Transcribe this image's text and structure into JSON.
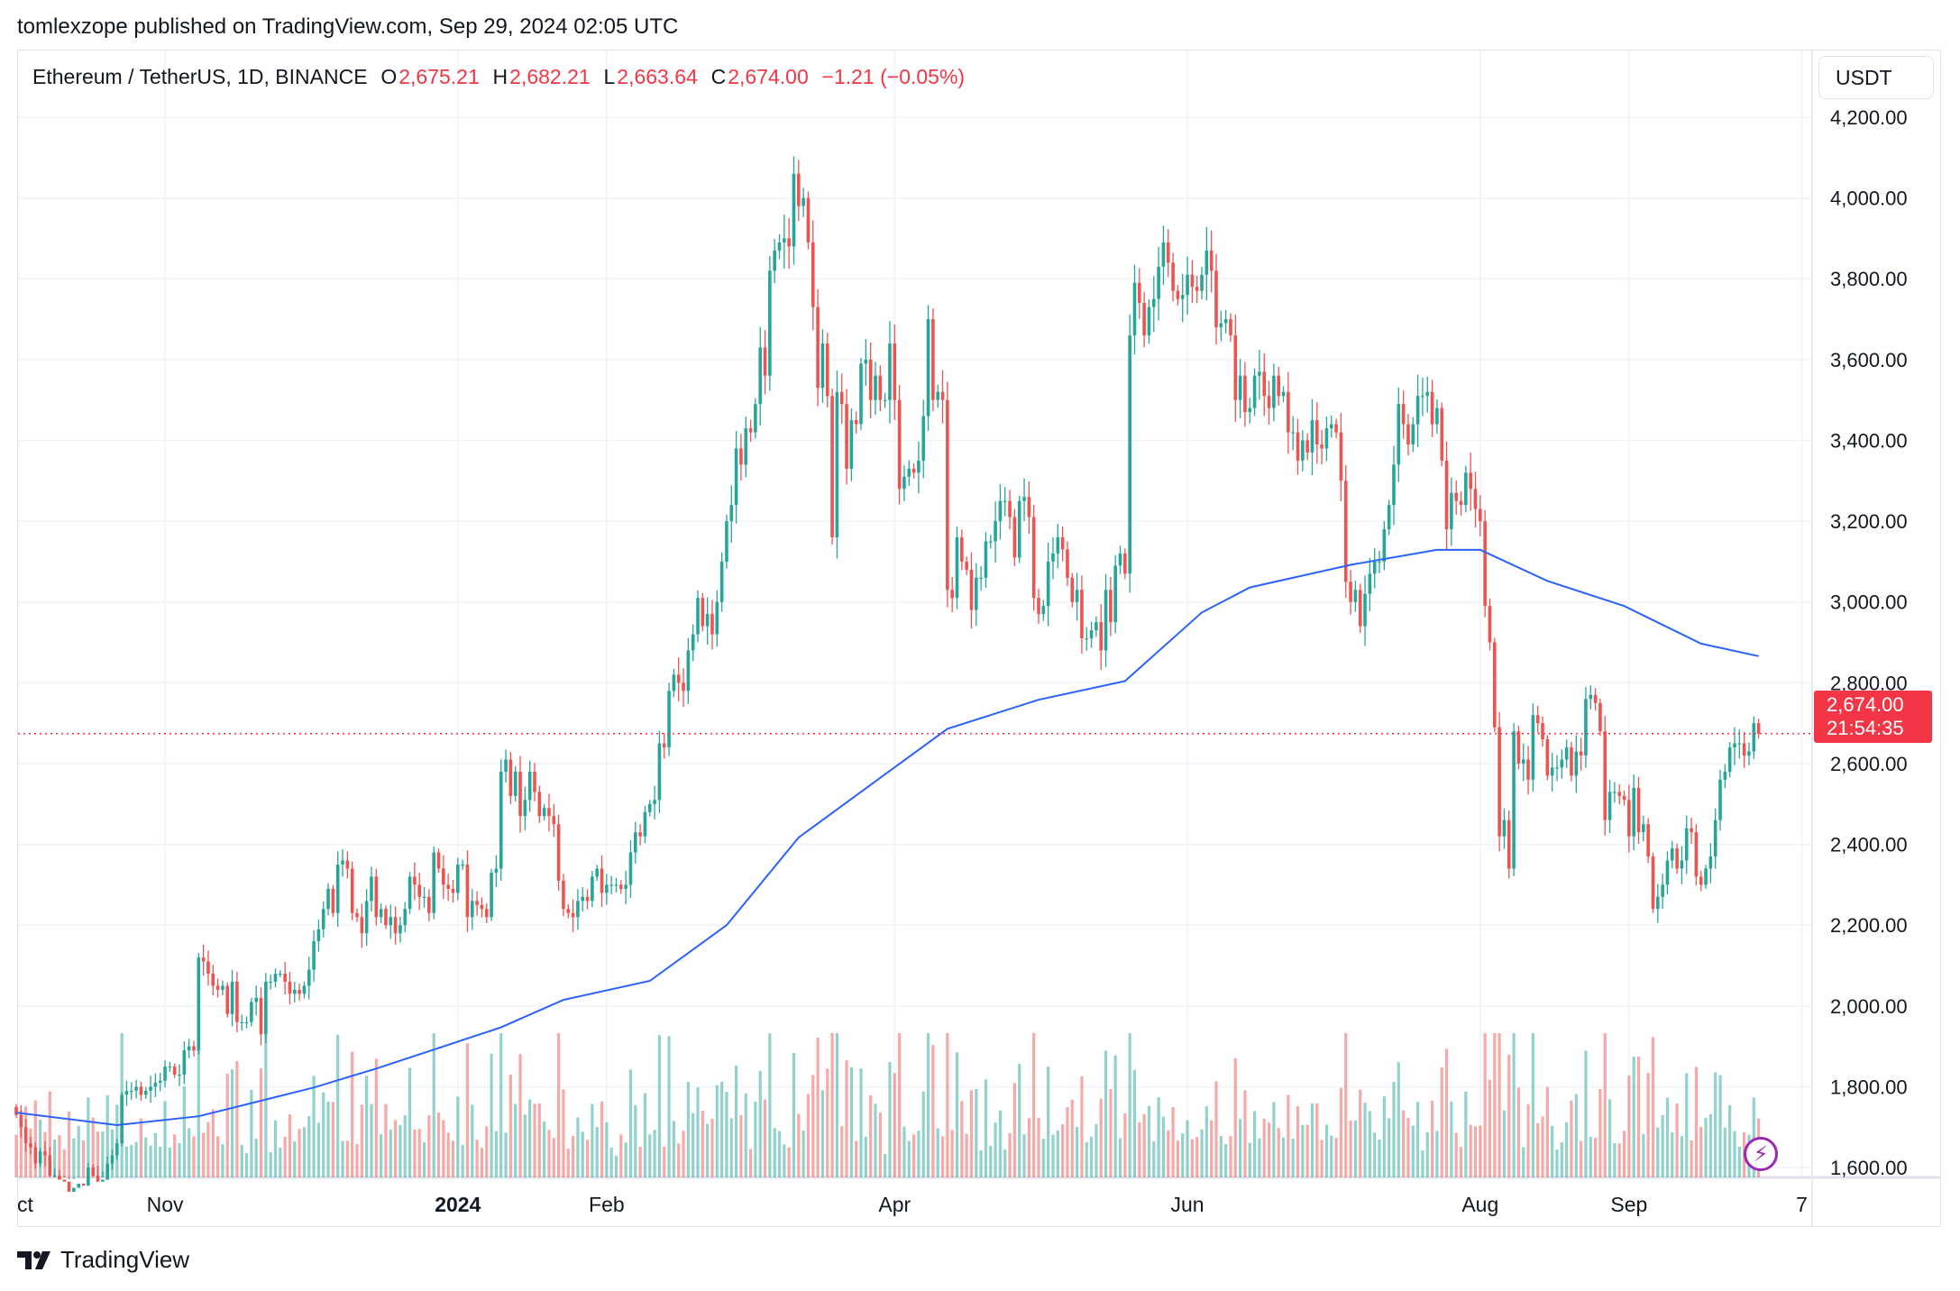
{
  "header": {
    "published": "tomlexzope published on TradingView.com, Sep 29, 2024 02:05 UTC"
  },
  "legend": {
    "symbol": "Ethereum / TetherUS, 1D, BINANCE",
    "o_label": "O",
    "o": "2,675.21",
    "h_label": "H",
    "h": "2,682.21",
    "l_label": "L",
    "l": "2,663.64",
    "c_label": "C",
    "c": "2,674.00",
    "change": "−1.21 (−0.05%)"
  },
  "currency_button": "USDT",
  "last_price": {
    "value": "2,674.00",
    "countdown": "21:54:35"
  },
  "footer": {
    "brand": "TradingView"
  },
  "colors": {
    "up": "#26a69a",
    "down": "#ef5350",
    "ma": "#2962ff",
    "last_price": "#f23645",
    "alert_icon": "#9c27b0"
  },
  "icons": {
    "alert": "lightning-icon",
    "logo": "tradingview-logo-icon"
  },
  "chart_data": {
    "type": "candlestick",
    "start_date": "2023-10-01",
    "interval": "1D",
    "ylim": [
      1580,
      4250
    ],
    "y_ticks": [
      "4,200.00",
      "4,000.00",
      "3,800.00",
      "3,600.00",
      "3,400.00",
      "3,200.00",
      "3,000.00",
      "2,800.00",
      "2,600.00",
      "2,400.00",
      "2,200.00",
      "2,000.00",
      "1,800.00",
      "1,600.00"
    ],
    "y_tick_values": [
      4200,
      4000,
      3800,
      3600,
      3400,
      3200,
      3000,
      2800,
      2600,
      2400,
      2200,
      2000,
      1800,
      1600
    ],
    "x_ticks": [
      {
        "label": "ct",
        "date": "2023-10-01"
      },
      {
        "label": "Nov",
        "date": "2023-11-01"
      },
      {
        "label": "2024",
        "date": "2024-01-01",
        "bold": true
      },
      {
        "label": "Feb",
        "date": "2024-02-01"
      },
      {
        "label": "Apr",
        "date": "2024-04-01"
      },
      {
        "label": "Jun",
        "date": "2024-06-01"
      },
      {
        "label": "Aug",
        "date": "2024-08-01"
      },
      {
        "label": "Sep",
        "date": "2024-09-01"
      },
      {
        "label": "7",
        "date": "2024-10-07"
      }
    ],
    "grid": true,
    "close": [
      1730,
      1700,
      1660,
      1650,
      1610,
      1640,
      1630,
      1580,
      1580,
      1570,
      1565,
      1540,
      1550,
      1560,
      1555,
      1600,
      1580,
      1565,
      1570,
      1610,
      1630,
      1660,
      1780,
      1790,
      1790,
      1800,
      1780,
      1790,
      1800,
      1810,
      1815,
      1850,
      1850,
      1830,
      1830,
      1890,
      1900,
      1890,
      2120,
      2110,
      2080,
      2050,
      2040,
      2050,
      1980,
      2060,
      1960,
      1960,
      1960,
      2010,
      2020,
      1930,
      2060,
      2060,
      2080,
      2080,
      2060,
      2030,
      2040,
      2030,
      2050,
      2090,
      2160,
      2190,
      2240,
      2290,
      2230,
      2350,
      2360,
      2340,
      2230,
      2220,
      2180,
      2260,
      2320,
      2220,
      2240,
      2200,
      2220,
      2180,
      2200,
      2240,
      2320,
      2300,
      2270,
      2270,
      2230,
      2380,
      2340,
      2300,
      2290,
      2280,
      2350,
      2350,
      2220,
      2260,
      2250,
      2240,
      2220,
      2330,
      2340,
      2580,
      2610,
      2520,
      2580,
      2470,
      2510,
      2580,
      2530,
      2470,
      2490,
      2470,
      2450,
      2310,
      2240,
      2230,
      2220,
      2260,
      2270,
      2260,
      2320,
      2340,
      2280,
      2300,
      2300,
      2300,
      2290,
      2300,
      2380,
      2430,
      2420,
      2480,
      2500,
      2510,
      2650,
      2640,
      2780,
      2820,
      2800,
      2780,
      2880,
      2920,
      3010,
      2940,
      2970,
      2920,
      3000,
      3100,
      3200,
      3240,
      3380,
      3340,
      3430,
      3420,
      3490,
      3630,
      3560,
      3820,
      3870,
      3890,
      3900,
      3880,
      4060,
      3980,
      4000,
      3890,
      3730,
      3530,
      3640,
      3510,
      3160,
      3520,
      3490,
      3330,
      3450,
      3440,
      3590,
      3600,
      3500,
      3560,
      3500,
      3500,
      3640,
      3500,
      3280,
      3310,
      3330,
      3320,
      3350,
      3460,
      3700,
      3500,
      3520,
      3500,
      3030,
      3010,
      3160,
      3100,
      3080,
      2980,
      3060,
      3060,
      3150,
      3150,
      3200,
      3250,
      3250,
      3210,
      3110,
      3250,
      3260,
      3210,
      3010,
      2970,
      2990,
      3100,
      3120,
      3160,
      3130,
      3060,
      3000,
      3030,
      2910,
      2910,
      2930,
      2950,
      2880,
      3030,
      2950,
      3090,
      3120,
      3070,
      3660,
      3790,
      3740,
      3660,
      3730,
      3750,
      3830,
      3890,
      3840,
      3770,
      3750,
      3760,
      3810,
      3780,
      3770,
      3810,
      3870,
      3820,
      3680,
      3690,
      3700,
      3660,
      3500,
      3560,
      3470,
      3480,
      3560,
      3570,
      3510,
      3480,
      3560,
      3510,
      3520,
      3420,
      3420,
      3350,
      3400,
      3370,
      3450,
      3390,
      3380,
      3430,
      3440,
      3420,
      3300,
      3050,
      3000,
      3030,
      2940,
      3020,
      3070,
      3100,
      3100,
      3180,
      3240,
      3340,
      3490,
      3440,
      3390,
      3440,
      3510,
      3510,
      3520,
      3440,
      3480,
      3350,
      3180,
      3270,
      3250,
      3240,
      3320,
      3280,
      3230,
      3200,
      2990,
      2900,
      2690,
      2420,
      2460,
      2340,
      2680,
      2600,
      2610,
      2560,
      2720,
      2700,
      2660,
      2570,
      2590,
      2590,
      2610,
      2640,
      2570,
      2630,
      2620,
      2760,
      2770,
      2750,
      2680,
      2460,
      2530,
      2530,
      2520,
      2510,
      2420,
      2540,
      2430,
      2450,
      2370,
      2240,
      2270,
      2300,
      2360,
      2390,
      2340,
      2360,
      2440,
      2430,
      2320,
      2300,
      2340,
      2370,
      2460,
      2560,
      2580,
      2640,
      2650,
      2650,
      2620,
      2630,
      2700,
      2674
    ],
    "ma_200": [
      {
        "date": "2023-10-01",
        "value": 1736
      },
      {
        "date": "2023-10-22",
        "value": 1705
      },
      {
        "date": "2023-11-08",
        "value": 1727
      },
      {
        "date": "2023-12-02",
        "value": 1798
      },
      {
        "date": "2023-12-15",
        "value": 1845
      },
      {
        "date": "2024-01-10",
        "value": 1947
      },
      {
        "date": "2024-01-23",
        "value": 2015
      },
      {
        "date": "2024-02-10",
        "value": 2062
      },
      {
        "date": "2024-02-26",
        "value": 2200
      },
      {
        "date": "2024-03-12",
        "value": 2417
      },
      {
        "date": "2024-03-28",
        "value": 2556
      },
      {
        "date": "2024-04-12",
        "value": 2686
      },
      {
        "date": "2024-05-01",
        "value": 2758
      },
      {
        "date": "2024-05-19",
        "value": 2804
      },
      {
        "date": "2024-06-04",
        "value": 2974
      },
      {
        "date": "2024-06-14",
        "value": 3036
      },
      {
        "date": "2024-07-05",
        "value": 3092
      },
      {
        "date": "2024-07-23",
        "value": 3129
      },
      {
        "date": "2024-08-01",
        "value": 3129
      },
      {
        "date": "2024-08-15",
        "value": 3052
      },
      {
        "date": "2024-08-31",
        "value": 2990
      },
      {
        "date": "2024-09-16",
        "value": 2897
      },
      {
        "date": "2024-09-28",
        "value": 2866
      }
    ],
    "last_close": 2674
  }
}
